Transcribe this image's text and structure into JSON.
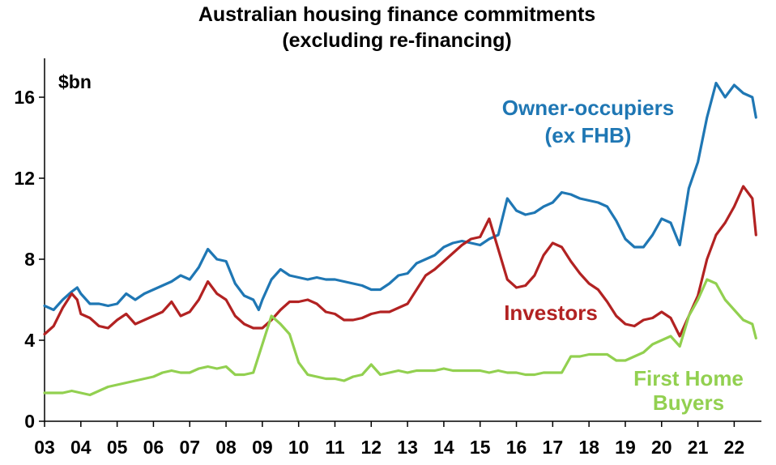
{
  "chart_data": {
    "type": "line",
    "title": "Australian housing finance commitments",
    "subtitle": "(excluding re-financing)",
    "unit_label": "$bn",
    "xlabel": "",
    "ylabel": "",
    "xlim": [
      2003.0,
      2022.75
    ],
    "ylim": [
      0,
      18
    ],
    "yticks": [
      0,
      4,
      8,
      12,
      16
    ],
    "xtick_labels": [
      "03",
      "04",
      "05",
      "06",
      "07",
      "08",
      "09",
      "10",
      "11",
      "12",
      "13",
      "14",
      "15",
      "16",
      "17",
      "18",
      "19",
      "20",
      "21",
      "22"
    ],
    "grid": false,
    "legend": "inline labels",
    "series": [
      {
        "name_lines": [
          "Owner-occupiers",
          "(ex FHB)"
        ],
        "color": "#1F77B4",
        "points": [
          [
            2003.0,
            5.7
          ],
          [
            2003.25,
            5.5
          ],
          [
            2003.5,
            6.0
          ],
          [
            2003.75,
            6.4
          ],
          [
            2003.9,
            6.6
          ],
          [
            2004.0,
            6.3
          ],
          [
            2004.25,
            5.8
          ],
          [
            2004.5,
            5.8
          ],
          [
            2004.75,
            5.7
          ],
          [
            2005.0,
            5.8
          ],
          [
            2005.25,
            6.3
          ],
          [
            2005.5,
            6.0
          ],
          [
            2005.75,
            6.3
          ],
          [
            2006.0,
            6.5
          ],
          [
            2006.25,
            6.7
          ],
          [
            2006.5,
            6.9
          ],
          [
            2006.75,
            7.2
          ],
          [
            2007.0,
            7.0
          ],
          [
            2007.25,
            7.6
          ],
          [
            2007.5,
            8.5
          ],
          [
            2007.75,
            8.0
          ],
          [
            2008.0,
            7.9
          ],
          [
            2008.25,
            6.8
          ],
          [
            2008.5,
            6.2
          ],
          [
            2008.75,
            6.0
          ],
          [
            2008.9,
            5.5
          ],
          [
            2009.0,
            6.0
          ],
          [
            2009.25,
            7.0
          ],
          [
            2009.5,
            7.5
          ],
          [
            2009.75,
            7.2
          ],
          [
            2010.0,
            7.1
          ],
          [
            2010.25,
            7.0
          ],
          [
            2010.5,
            7.1
          ],
          [
            2010.75,
            7.0
          ],
          [
            2011.0,
            7.0
          ],
          [
            2011.25,
            6.9
          ],
          [
            2011.5,
            6.8
          ],
          [
            2011.75,
            6.7
          ],
          [
            2012.0,
            6.5
          ],
          [
            2012.25,
            6.5
          ],
          [
            2012.5,
            6.8
          ],
          [
            2012.75,
            7.2
          ],
          [
            2013.0,
            7.3
          ],
          [
            2013.25,
            7.8
          ],
          [
            2013.5,
            8.0
          ],
          [
            2013.75,
            8.2
          ],
          [
            2014.0,
            8.6
          ],
          [
            2014.25,
            8.8
          ],
          [
            2014.5,
            8.9
          ],
          [
            2014.75,
            8.8
          ],
          [
            2015.0,
            8.7
          ],
          [
            2015.25,
            9.0
          ],
          [
            2015.5,
            9.2
          ],
          [
            2015.75,
            11.0
          ],
          [
            2016.0,
            10.4
          ],
          [
            2016.25,
            10.2
          ],
          [
            2016.5,
            10.3
          ],
          [
            2016.75,
            10.6
          ],
          [
            2017.0,
            10.8
          ],
          [
            2017.25,
            11.3
          ],
          [
            2017.5,
            11.2
          ],
          [
            2017.75,
            11.0
          ],
          [
            2018.0,
            10.9
          ],
          [
            2018.25,
            10.8
          ],
          [
            2018.5,
            10.6
          ],
          [
            2018.75,
            9.9
          ],
          [
            2019.0,
            9.0
          ],
          [
            2019.25,
            8.6
          ],
          [
            2019.5,
            8.6
          ],
          [
            2019.75,
            9.2
          ],
          [
            2020.0,
            10.0
          ],
          [
            2020.25,
            9.8
          ],
          [
            2020.5,
            8.7
          ],
          [
            2020.75,
            11.5
          ],
          [
            2021.0,
            12.8
          ],
          [
            2021.25,
            15.0
          ],
          [
            2021.5,
            16.7
          ],
          [
            2021.75,
            16.0
          ],
          [
            2022.0,
            16.6
          ],
          [
            2022.25,
            16.2
          ],
          [
            2022.5,
            16.0
          ],
          [
            2022.6,
            15.0
          ]
        ]
      },
      {
        "name_lines": [
          "Investors"
        ],
        "color": "#B22222",
        "points": [
          [
            2003.0,
            4.3
          ],
          [
            2003.25,
            4.7
          ],
          [
            2003.5,
            5.6
          ],
          [
            2003.75,
            6.3
          ],
          [
            2003.9,
            6.0
          ],
          [
            2004.0,
            5.3
          ],
          [
            2004.25,
            5.1
          ],
          [
            2004.5,
            4.7
          ],
          [
            2004.75,
            4.6
          ],
          [
            2005.0,
            5.0
          ],
          [
            2005.25,
            5.3
          ],
          [
            2005.5,
            4.8
          ],
          [
            2005.75,
            5.0
          ],
          [
            2006.0,
            5.2
          ],
          [
            2006.25,
            5.4
          ],
          [
            2006.5,
            5.9
          ],
          [
            2006.75,
            5.2
          ],
          [
            2007.0,
            5.4
          ],
          [
            2007.25,
            6.0
          ],
          [
            2007.5,
            6.9
          ],
          [
            2007.75,
            6.3
          ],
          [
            2008.0,
            6.0
          ],
          [
            2008.25,
            5.2
          ],
          [
            2008.5,
            4.8
          ],
          [
            2008.75,
            4.6
          ],
          [
            2009.0,
            4.6
          ],
          [
            2009.25,
            5.0
          ],
          [
            2009.5,
            5.5
          ],
          [
            2009.75,
            5.9
          ],
          [
            2010.0,
            5.9
          ],
          [
            2010.25,
            6.0
          ],
          [
            2010.5,
            5.8
          ],
          [
            2010.75,
            5.4
          ],
          [
            2011.0,
            5.3
          ],
          [
            2011.25,
            5.0
          ],
          [
            2011.5,
            5.0
          ],
          [
            2011.75,
            5.1
          ],
          [
            2012.0,
            5.3
          ],
          [
            2012.25,
            5.4
          ],
          [
            2012.5,
            5.4
          ],
          [
            2012.75,
            5.6
          ],
          [
            2013.0,
            5.8
          ],
          [
            2013.25,
            6.5
          ],
          [
            2013.5,
            7.2
          ],
          [
            2013.75,
            7.5
          ],
          [
            2014.0,
            7.9
          ],
          [
            2014.25,
            8.3
          ],
          [
            2014.5,
            8.7
          ],
          [
            2014.75,
            9.0
          ],
          [
            2015.0,
            9.1
          ],
          [
            2015.25,
            10.0
          ],
          [
            2015.5,
            8.5
          ],
          [
            2015.75,
            7.0
          ],
          [
            2016.0,
            6.6
          ],
          [
            2016.25,
            6.7
          ],
          [
            2016.5,
            7.2
          ],
          [
            2016.75,
            8.2
          ],
          [
            2017.0,
            8.8
          ],
          [
            2017.25,
            8.6
          ],
          [
            2017.5,
            7.9
          ],
          [
            2017.75,
            7.3
          ],
          [
            2018.0,
            6.8
          ],
          [
            2018.25,
            6.5
          ],
          [
            2018.5,
            5.9
          ],
          [
            2018.75,
            5.2
          ],
          [
            2019.0,
            4.8
          ],
          [
            2019.25,
            4.7
          ],
          [
            2019.5,
            5.0
          ],
          [
            2019.75,
            5.1
          ],
          [
            2020.0,
            5.4
          ],
          [
            2020.25,
            5.1
          ],
          [
            2020.5,
            4.2
          ],
          [
            2020.75,
            5.2
          ],
          [
            2021.0,
            6.2
          ],
          [
            2021.25,
            8.0
          ],
          [
            2021.5,
            9.2
          ],
          [
            2021.75,
            9.8
          ],
          [
            2022.0,
            10.6
          ],
          [
            2022.25,
            11.6
          ],
          [
            2022.5,
            11.0
          ],
          [
            2022.6,
            9.2
          ]
        ]
      },
      {
        "name_lines": [
          "First Home",
          "Buyers"
        ],
        "color": "#92D050",
        "points": [
          [
            2003.0,
            1.4
          ],
          [
            2003.25,
            1.4
          ],
          [
            2003.5,
            1.4
          ],
          [
            2003.75,
            1.5
          ],
          [
            2004.0,
            1.4
          ],
          [
            2004.25,
            1.3
          ],
          [
            2004.5,
            1.5
          ],
          [
            2004.75,
            1.7
          ],
          [
            2005.0,
            1.8
          ],
          [
            2005.25,
            1.9
          ],
          [
            2005.5,
            2.0
          ],
          [
            2005.75,
            2.1
          ],
          [
            2006.0,
            2.2
          ],
          [
            2006.25,
            2.4
          ],
          [
            2006.5,
            2.5
          ],
          [
            2006.75,
            2.4
          ],
          [
            2007.0,
            2.4
          ],
          [
            2007.25,
            2.6
          ],
          [
            2007.5,
            2.7
          ],
          [
            2007.75,
            2.6
          ],
          [
            2008.0,
            2.7
          ],
          [
            2008.25,
            2.3
          ],
          [
            2008.5,
            2.3
          ],
          [
            2008.75,
            2.4
          ],
          [
            2009.0,
            3.8
          ],
          [
            2009.25,
            5.2
          ],
          [
            2009.5,
            4.8
          ],
          [
            2009.75,
            4.3
          ],
          [
            2010.0,
            2.9
          ],
          [
            2010.25,
            2.3
          ],
          [
            2010.5,
            2.2
          ],
          [
            2010.75,
            2.1
          ],
          [
            2011.0,
            2.1
          ],
          [
            2011.25,
            2.0
          ],
          [
            2011.5,
            2.2
          ],
          [
            2011.75,
            2.3
          ],
          [
            2012.0,
            2.8
          ],
          [
            2012.25,
            2.3
          ],
          [
            2012.5,
            2.4
          ],
          [
            2012.75,
            2.5
          ],
          [
            2013.0,
            2.4
          ],
          [
            2013.25,
            2.5
          ],
          [
            2013.5,
            2.5
          ],
          [
            2013.75,
            2.5
          ],
          [
            2014.0,
            2.6
          ],
          [
            2014.25,
            2.5
          ],
          [
            2014.5,
            2.5
          ],
          [
            2014.75,
            2.5
          ],
          [
            2015.0,
            2.5
          ],
          [
            2015.25,
            2.4
          ],
          [
            2015.5,
            2.5
          ],
          [
            2015.75,
            2.4
          ],
          [
            2016.0,
            2.4
          ],
          [
            2016.25,
            2.3
          ],
          [
            2016.5,
            2.3
          ],
          [
            2016.75,
            2.4
          ],
          [
            2017.0,
            2.4
          ],
          [
            2017.25,
            2.4
          ],
          [
            2017.5,
            3.2
          ],
          [
            2017.75,
            3.2
          ],
          [
            2018.0,
            3.3
          ],
          [
            2018.25,
            3.3
          ],
          [
            2018.5,
            3.3
          ],
          [
            2018.75,
            3.0
          ],
          [
            2019.0,
            3.0
          ],
          [
            2019.25,
            3.2
          ],
          [
            2019.5,
            3.4
          ],
          [
            2019.75,
            3.8
          ],
          [
            2020.0,
            4.0
          ],
          [
            2020.25,
            4.2
          ],
          [
            2020.5,
            3.7
          ],
          [
            2020.75,
            5.2
          ],
          [
            2021.0,
            6.0
          ],
          [
            2021.25,
            7.0
          ],
          [
            2021.5,
            6.8
          ],
          [
            2021.75,
            6.0
          ],
          [
            2022.0,
            5.5
          ],
          [
            2022.25,
            5.0
          ],
          [
            2022.5,
            4.8
          ],
          [
            2022.6,
            4.1
          ]
        ]
      }
    ]
  }
}
